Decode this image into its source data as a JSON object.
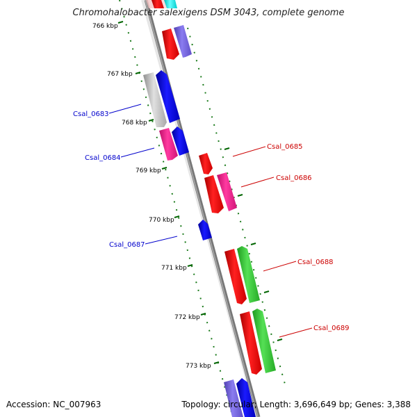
{
  "title": "Chromohalobacter salexigens DSM 3043, complete genome",
  "footer": {
    "accession": "Accession: NC_007963",
    "info": "Topology: circular; Length: 3,696,649 bp; Genes: 3,388"
  },
  "kbp_ticks": [
    "766 kbp",
    "767 kbp",
    "768 kbp",
    "769 kbp",
    "770 kbp",
    "771 kbp",
    "772 kbp",
    "773 kbp"
  ],
  "gene_labels": {
    "left": [
      "Csal_0683",
      "Csal_0684",
      "Csal_0687"
    ],
    "right": [
      "Csal_0685",
      "Csal_0686",
      "Csal_0688",
      "Csal_0689"
    ]
  },
  "colors": {
    "red": "#ff0000",
    "blue": "#0000ee",
    "magenta": "#ff1493",
    "green": "#33cc33",
    "gray": "#c0c0c0",
    "slate": "#7b68ee",
    "cyan": "#00ffff",
    "label_blue": "#0000cc",
    "label_red": "#cc0000",
    "tick_green": "#006400"
  }
}
